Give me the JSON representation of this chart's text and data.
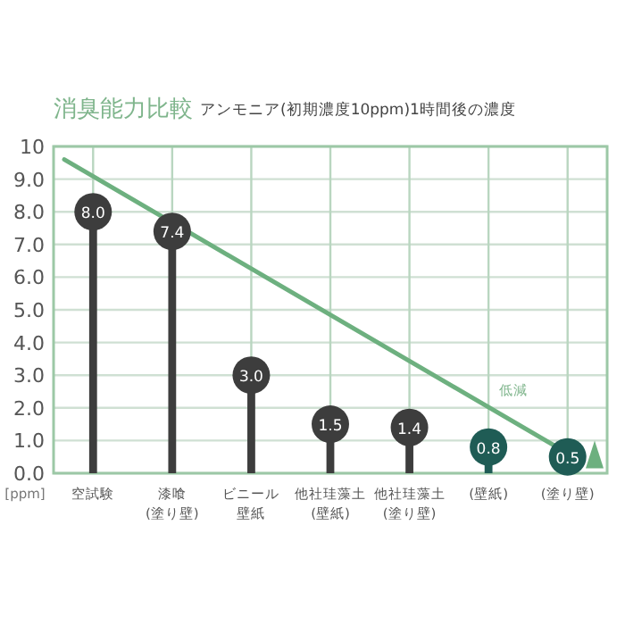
{
  "chart_data": {
    "type": "lollipop",
    "title": "消臭能力比較",
    "subtitle": "アンモニア(初期濃度10ppm)1時間後の濃度",
    "ylabel": "[ppm]",
    "categories": [
      "空試験",
      "漆喰(塗り壁)",
      "ビニール壁紙",
      "他社珪藻土(壁紙)",
      "他社珪藻土(塗り壁)",
      "(壁紙)",
      "(塗り壁)"
    ],
    "values": [
      8.0,
      7.4,
      3.0,
      1.5,
      1.4,
      0.8,
      0.5
    ],
    "value_labels": [
      "8.0",
      "7.4",
      "3.0",
      "1.5",
      "1.4",
      "0.8",
      "0.5"
    ],
    "colors": [
      "#3d3d3d",
      "#3d3d3d",
      "#3d3d3d",
      "#3d3d3d",
      "#3d3d3d",
      "#1f5c55",
      "#1f5c55"
    ],
    "ylim": [
      0,
      10
    ],
    "yticks": [
      {
        "value": 0,
        "label": "0.0"
      },
      {
        "value": 1,
        "label": "1.0"
      },
      {
        "value": 2,
        "label": "2.0"
      },
      {
        "value": 3,
        "label": "3.0"
      },
      {
        "value": 4,
        "label": "4.0"
      },
      {
        "value": 5,
        "label": "5.0"
      },
      {
        "value": 6,
        "label": "6.0"
      },
      {
        "value": 7,
        "label": "7.0"
      },
      {
        "value": 8,
        "label": "8.0"
      },
      {
        "value": 9,
        "label": "9.0"
      },
      10
    ],
    "grid": true,
    "annotations": [
      "低減"
    ]
  }
}
